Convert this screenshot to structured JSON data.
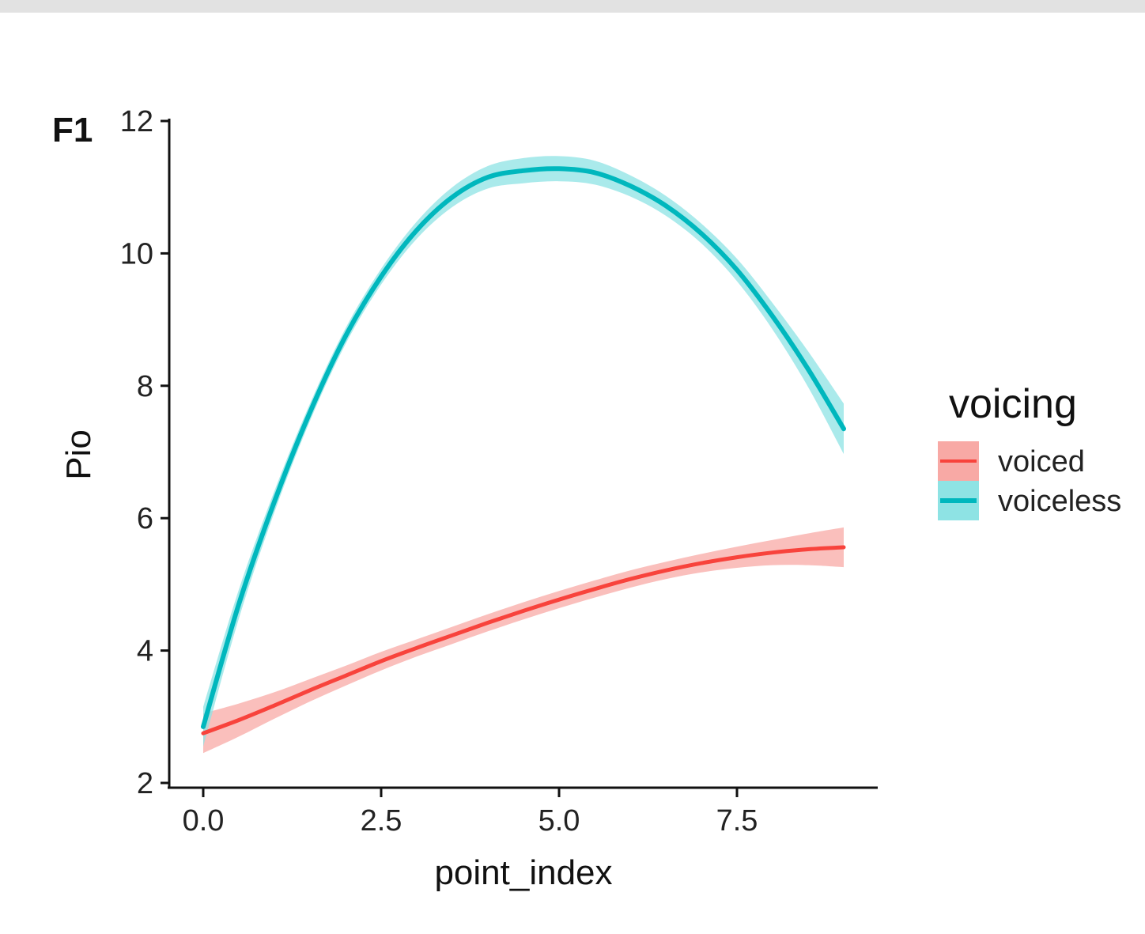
{
  "panel_label": "F1",
  "chart_data": {
    "type": "line",
    "xlabel": "point_index",
    "ylabel": "Pio",
    "xlim": [
      -0.5,
      9.5
    ],
    "ylim": [
      2,
      12
    ],
    "xticks": [
      0.0,
      2.5,
      5.0,
      7.5
    ],
    "xtick_labels": [
      "0.0",
      "2.5",
      "5.0",
      "7.5"
    ],
    "yticks": [
      2,
      4,
      6,
      8,
      10,
      12
    ],
    "ytick_labels": [
      "2",
      "4",
      "6",
      "8",
      "10",
      "12"
    ],
    "grid": false,
    "legend": {
      "title": "voicing",
      "position": "right"
    },
    "series": [
      {
        "name": "voiced",
        "color": "#f8433c",
        "band_color": "#f8a9a5",
        "x": [
          0,
          0.5,
          1,
          1.5,
          2,
          2.5,
          3,
          3.5,
          4,
          4.5,
          5,
          5.5,
          6,
          6.5,
          7,
          7.5,
          8,
          8.5,
          9
        ],
        "y": [
          2.75,
          2.95,
          3.17,
          3.4,
          3.62,
          3.84,
          4.04,
          4.23,
          4.42,
          4.6,
          4.77,
          4.93,
          5.08,
          5.21,
          5.32,
          5.41,
          5.48,
          5.53,
          5.56
        ],
        "band": [
          0.3,
          0.25,
          0.2,
          0.17,
          0.15,
          0.14,
          0.13,
          0.13,
          0.13,
          0.13,
          0.13,
          0.13,
          0.13,
          0.13,
          0.14,
          0.16,
          0.19,
          0.24,
          0.3
        ]
      },
      {
        "name": "voiceless",
        "color": "#00b7bd",
        "band_color": "#8ee3e4",
        "x": [
          0,
          0.5,
          1,
          1.5,
          2,
          2.5,
          3,
          3.5,
          4,
          4.5,
          5,
          5.5,
          6,
          6.5,
          7,
          7.5,
          8,
          8.5,
          9
        ],
        "y": [
          2.85,
          4.7,
          6.25,
          7.6,
          8.75,
          9.65,
          10.35,
          10.85,
          11.15,
          11.25,
          11.28,
          11.22,
          11.02,
          10.72,
          10.3,
          9.75,
          9.05,
          8.25,
          7.35
        ],
        "band": [
          0.3,
          0.22,
          0.16,
          0.13,
          0.12,
          0.12,
          0.13,
          0.15,
          0.17,
          0.19,
          0.19,
          0.18,
          0.16,
          0.15,
          0.15,
          0.17,
          0.2,
          0.27,
          0.38
        ]
      }
    ]
  }
}
